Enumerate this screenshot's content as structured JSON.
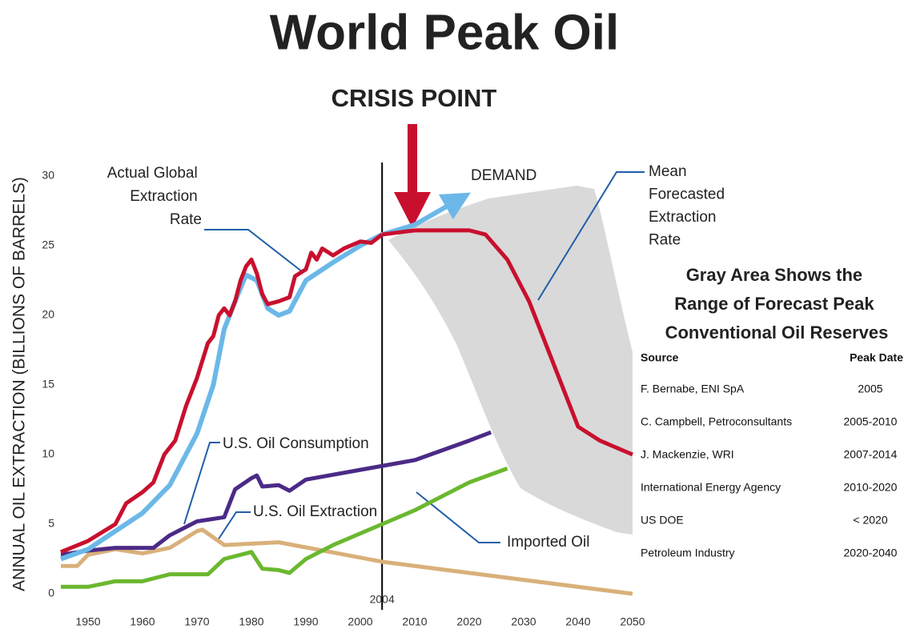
{
  "chart_data": {
    "type": "line",
    "title": "World Peak Oil",
    "crisis_label": "CRISIS POINT",
    "y_label": "ANNUAL OIL EXTRACTION (BILLIONS OF BARRELS)",
    "xlim": [
      1945,
      2050
    ],
    "ylim": [
      0,
      30
    ],
    "xticks": [
      1950,
      1960,
      1970,
      1980,
      1990,
      2000,
      2010,
      2020,
      2030,
      2040,
      2050
    ],
    "yticks": [
      0,
      5,
      10,
      15,
      20,
      25,
      30
    ],
    "vline": {
      "x": 2004,
      "label": 2004
    },
    "series": [
      {
        "name": "Actual Global Extraction Rate",
        "color": "#c8102e",
        "x": [
          1945,
          1950,
          1955,
          1957,
          1960,
          1962,
          1964,
          1966,
          1968,
          1970,
          1972,
          1973,
          1974,
          1975,
          1976,
          1977,
          1978,
          1979,
          1980,
          1981,
          1982,
          1983,
          1985,
          1987,
          1988,
          1990,
          1991,
          1992,
          1993,
          1995,
          1997,
          2000,
          2002,
          2004
        ],
        "values": [
          3,
          3.8,
          5,
          6.5,
          7.3,
          8,
          10,
          11,
          13.5,
          15.5,
          18,
          18.5,
          20,
          20.5,
          20,
          21,
          22.5,
          23.5,
          24,
          23,
          21.5,
          20.8,
          21,
          21.3,
          22.8,
          23.3,
          24.5,
          24,
          24.8,
          24.3,
          24.8,
          25.3,
          25.2,
          25.8
        ]
      },
      {
        "name": "Mean Forecasted Extraction Rate",
        "color": "#c8102e",
        "x": [
          2004,
          2010,
          2020,
          2023,
          2027,
          2031,
          2035,
          2040,
          2044,
          2050
        ],
        "values": [
          25.8,
          26.1,
          26.1,
          25.8,
          24,
          21,
          17,
          12,
          11,
          10
        ]
      },
      {
        "name": "DEMAND",
        "color": "#6bb8e8",
        "x": [
          1945,
          1950,
          1955,
          1960,
          1965,
          1970,
          1973,
          1975,
          1977,
          1979,
          1981,
          1983,
          1985,
          1987,
          1990,
          1995,
          2000,
          2004,
          2010,
          2018
        ],
        "values": [
          2.5,
          3.2,
          4.5,
          5.8,
          7.8,
          11.5,
          15,
          19,
          21,
          22.9,
          22.5,
          20.5,
          20,
          20.3,
          22.5,
          23.8,
          25,
          25.8,
          26.5,
          28.3
        ]
      },
      {
        "name": "U.S. Oil Consumption",
        "color": "#4b2a86",
        "x": [
          1945,
          1950,
          1955,
          1962,
          1965,
          1970,
          1975,
          1977,
          1980,
          1981,
          1982,
          1985,
          1987,
          1990,
          2000,
          2010,
          2020,
          2024
        ],
        "values": [
          2.8,
          3.1,
          3.3,
          3.3,
          4.2,
          5.2,
          5.5,
          7.5,
          8.3,
          8.5,
          7.7,
          7.8,
          7.4,
          8.2,
          8.9,
          9.6,
          11,
          11.6
        ]
      },
      {
        "name": "U.S. Oil Extraction",
        "color": "#d9b07a",
        "x": [
          1945,
          1948,
          1950,
          1955,
          1960,
          1965,
          1970,
          1971,
          1975,
          1985,
          2004,
          2050
        ],
        "values": [
          2,
          2,
          2.8,
          3.2,
          2.9,
          3.3,
          4.5,
          4.6,
          3.5,
          3.7,
          2.3,
          0
        ]
      },
      {
        "name": "Imported Oil",
        "color": "#6ab82f",
        "x": [
          1945,
          1950,
          1955,
          1960,
          1965,
          1972,
          1975,
          1980,
          1982,
          1985,
          1987,
          1990,
          1995,
          2004,
          2010,
          2020,
          2027
        ],
        "values": [
          0.5,
          0.5,
          0.9,
          0.9,
          1.4,
          1.4,
          2.5,
          3,
          1.8,
          1.7,
          1.5,
          2.5,
          3.5,
          5,
          6,
          8,
          9
        ]
      }
    ],
    "table": {
      "title": "Gray Area Shows the Range of Forecast Peak Conventional Oil Reserves",
      "header": [
        "Source",
        "Peak Date"
      ],
      "rows": [
        [
          "F. Bernabe, ENI SpA",
          2005
        ],
        [
          "C. Campbell, Petroconsultants",
          "2005-2010"
        ],
        [
          "J. Mackenzie, WRI",
          "2007-2014"
        ],
        [
          "International Energy Agency",
          "2010-2020"
        ],
        [
          "US DOE",
          "< 2020"
        ],
        [
          "Petroleum Industry",
          "2020-2040"
        ]
      ]
    }
  }
}
